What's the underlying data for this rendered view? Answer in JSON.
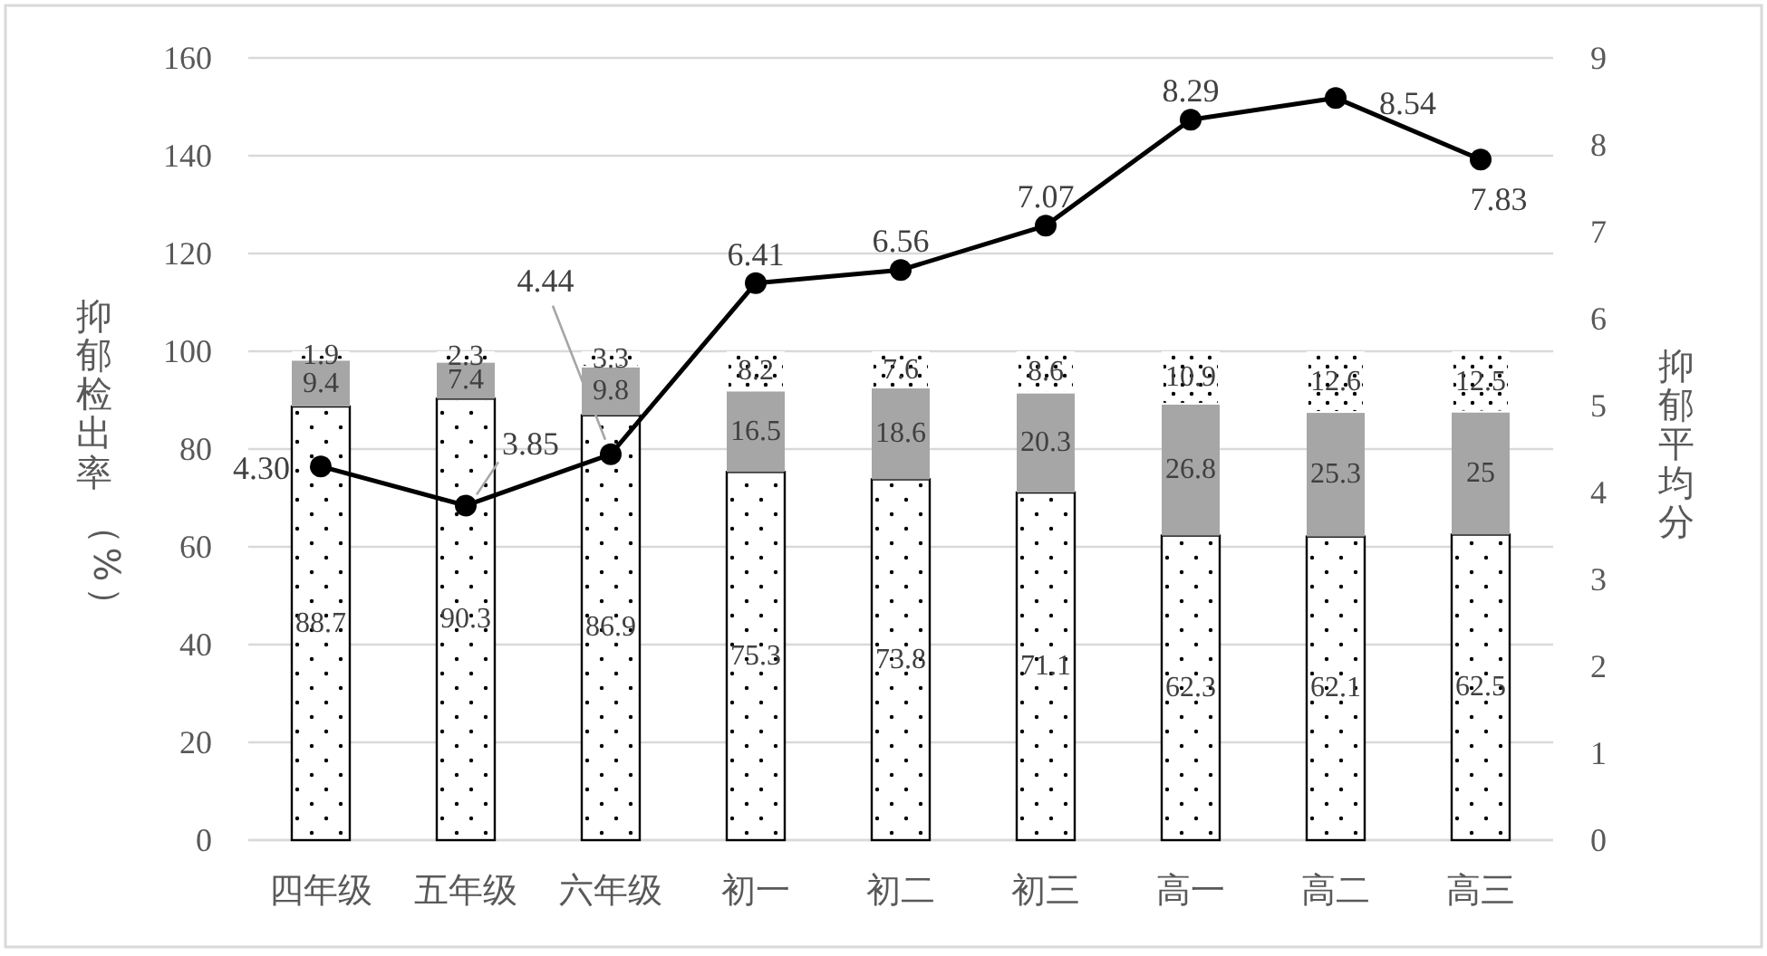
{
  "chart_data": {
    "type": "bar",
    "stacked": true,
    "grid": "y",
    "categories": [
      "四年级",
      "五年级",
      "六年级",
      "初一",
      "初二",
      "初三",
      "高一",
      "高二",
      "高三"
    ],
    "ylabel": "抑郁检出率（%）",
    "y2label": "抑郁平均分",
    "ylim": [
      0,
      160
    ],
    "yticks": [
      0,
      20,
      40,
      60,
      80,
      100,
      120,
      140,
      160
    ],
    "y2lim": [
      0,
      9
    ],
    "y2ticks": [
      0,
      1,
      2,
      3,
      4,
      5,
      6,
      7,
      8,
      9
    ],
    "series": [
      {
        "color": "#ffffff",
        "values": [
          88.7,
          90.3,
          86.9,
          75.3,
          73.8,
          71.1,
          62.3,
          62.1,
          62.5
        ],
        "value_labels": [
          "88.7",
          "90.3",
          "86.9",
          "75.3",
          "73.8",
          "71.1",
          "62.3",
          "62.1",
          "62.5"
        ]
      },
      {
        "color": "#a6a6a6",
        "values": [
          9.4,
          7.4,
          9.8,
          16.5,
          18.6,
          20.3,
          26.8,
          25.3,
          25
        ],
        "value_labels": [
          "9.4",
          "7.4",
          "9.8",
          "16.5",
          "18.6",
          "20.3",
          "26.8",
          "25.3",
          "25"
        ]
      },
      {
        "color": "#ffffff",
        "values": [
          1.9,
          2.3,
          3.3,
          8.2,
          7.6,
          8.6,
          10.9,
          12.6,
          12.5
        ],
        "value_labels": [
          "1.9",
          "2.3",
          "3.3",
          "8.2",
          "7.6",
          "8.6",
          "10.9",
          "12.6",
          "12.5"
        ]
      },
      {
        "type": "line",
        "axis": "y2",
        "color": "#000000",
        "marker": "circle",
        "values": [
          4.3,
          3.85,
          4.44,
          6.41,
          6.56,
          7.07,
          8.29,
          8.54,
          7.83
        ],
        "value_labels": [
          "4.30",
          "3.85",
          "4.44",
          "6.41",
          "6.56",
          "7.07",
          "8.29",
          "8.54",
          "7.83"
        ]
      }
    ]
  }
}
